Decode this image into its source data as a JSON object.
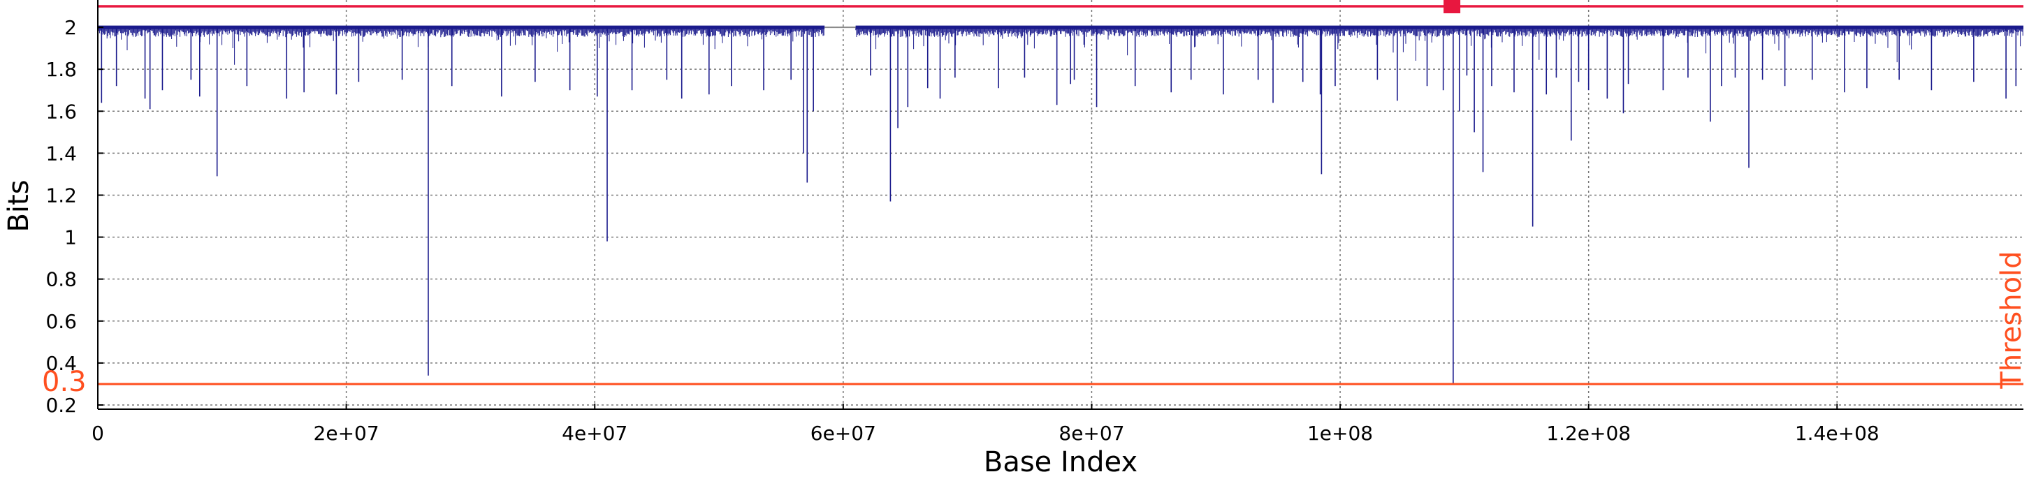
{
  "chart_data": {
    "type": "line",
    "title": "",
    "xlabel": "Base Index",
    "ylabel": "Bits",
    "xlim": [
      0,
      155000000
    ],
    "ylim": [
      0.18,
      2.13
    ],
    "grid": true,
    "x_ticks": [
      {
        "value": 0,
        "label": "0"
      },
      {
        "value": 20000000,
        "label": "2e+07"
      },
      {
        "value": 40000000,
        "label": "4e+07"
      },
      {
        "value": 60000000,
        "label": "6e+07"
      },
      {
        "value": 80000000,
        "label": "8e+07"
      },
      {
        "value": 100000000,
        "label": "1e+08"
      },
      {
        "value": 120000000,
        "label": "1.2e+08"
      },
      {
        "value": 140000000,
        "label": "1.4e+08"
      }
    ],
    "y_ticks": [
      {
        "value": 0.2,
        "label": "0.2"
      },
      {
        "value": 0.4,
        "label": "0.4"
      },
      {
        "value": 0.6,
        "label": "0.6"
      },
      {
        "value": 0.8,
        "label": "0.8"
      },
      {
        "value": 1.0,
        "label": "1"
      },
      {
        "value": 1.2,
        "label": "1.2"
      },
      {
        "value": 1.4,
        "label": "1.4"
      },
      {
        "value": 1.6,
        "label": "1.6"
      },
      {
        "value": 1.8,
        "label": "1.8"
      },
      {
        "value": 2.0,
        "label": "2"
      }
    ],
    "series": [
      {
        "color": "#1a1a8c",
        "baseline": 2.0,
        "flat_segment": [
          58500000,
          61000000
        ],
        "dips": [
          [
            300000,
            1.64
          ],
          [
            1500000,
            1.72
          ],
          [
            3800000,
            1.66
          ],
          [
            4200000,
            1.61
          ],
          [
            5200000,
            1.7
          ],
          [
            7500000,
            1.75
          ],
          [
            8200000,
            1.67
          ],
          [
            9600000,
            1.29
          ],
          [
            12000000,
            1.72
          ],
          [
            15200000,
            1.66
          ],
          [
            16600000,
            1.69
          ],
          [
            19200000,
            1.68
          ],
          [
            21000000,
            1.74
          ],
          [
            24500000,
            1.75
          ],
          [
            26600000,
            0.34
          ],
          [
            28500000,
            1.72
          ],
          [
            32500000,
            1.67
          ],
          [
            35200000,
            1.74
          ],
          [
            38000000,
            1.7
          ],
          [
            40200000,
            1.67
          ],
          [
            41000000,
            0.98
          ],
          [
            43000000,
            1.7
          ],
          [
            45800000,
            1.75
          ],
          [
            47000000,
            1.66
          ],
          [
            49200000,
            1.68
          ],
          [
            51000000,
            1.72
          ],
          [
            53600000,
            1.7
          ],
          [
            55800000,
            1.75
          ],
          [
            56800000,
            1.4
          ],
          [
            57100000,
            1.26
          ],
          [
            57600000,
            1.6
          ],
          [
            62200000,
            1.77
          ],
          [
            63800000,
            1.17
          ],
          [
            64400000,
            1.52
          ],
          [
            65200000,
            1.62
          ],
          [
            66800000,
            1.71
          ],
          [
            67800000,
            1.66
          ],
          [
            69000000,
            1.76
          ],
          [
            72500000,
            1.71
          ],
          [
            74600000,
            1.76
          ],
          [
            77200000,
            1.63
          ],
          [
            78300000,
            1.73
          ],
          [
            78600000,
            1.75
          ],
          [
            80400000,
            1.62
          ],
          [
            83500000,
            1.72
          ],
          [
            86400000,
            1.69
          ],
          [
            88000000,
            1.75
          ],
          [
            90600000,
            1.68
          ],
          [
            93400000,
            1.75
          ],
          [
            94600000,
            1.64
          ],
          [
            97000000,
            1.74
          ],
          [
            98400000,
            1.68
          ],
          [
            98500000,
            1.3
          ],
          [
            99600000,
            1.72
          ],
          [
            103000000,
            1.75
          ],
          [
            104600000,
            1.65
          ],
          [
            107000000,
            1.72
          ],
          [
            108300000,
            1.7
          ],
          [
            109100000,
            0.3
          ],
          [
            109600000,
            1.6
          ],
          [
            110200000,
            1.77
          ],
          [
            110800000,
            1.5
          ],
          [
            111500000,
            1.31
          ],
          [
            112200000,
            1.72
          ],
          [
            114000000,
            1.69
          ],
          [
            115500000,
            1.05
          ],
          [
            116600000,
            1.68
          ],
          [
            117400000,
            1.76
          ],
          [
            118600000,
            1.46
          ],
          [
            119200000,
            1.74
          ],
          [
            120000000,
            1.7
          ],
          [
            121500000,
            1.66
          ],
          [
            122800000,
            1.59
          ],
          [
            123200000,
            1.73
          ],
          [
            126000000,
            1.7
          ],
          [
            128000000,
            1.76
          ],
          [
            129800000,
            1.55
          ],
          [
            130700000,
            1.72
          ],
          [
            131800000,
            1.76
          ],
          [
            132900000,
            1.33
          ],
          [
            134000000,
            1.75
          ],
          [
            135800000,
            1.72
          ],
          [
            138000000,
            1.75
          ],
          [
            140600000,
            1.69
          ],
          [
            142400000,
            1.71
          ],
          [
            145000000,
            1.75
          ],
          [
            147600000,
            1.7
          ],
          [
            151000000,
            1.74
          ],
          [
            153600000,
            1.66
          ],
          [
            154400000,
            1.72
          ]
        ]
      }
    ],
    "threshold": {
      "value": 0.3,
      "value_label": "0.3",
      "label": "Threshold",
      "color": "#ff4f1f"
    },
    "upper_line": {
      "value": 2.1,
      "color": "#e8173f"
    },
    "marker": {
      "x": 109000000,
      "y": 2.1,
      "color": "#e8173f"
    }
  }
}
